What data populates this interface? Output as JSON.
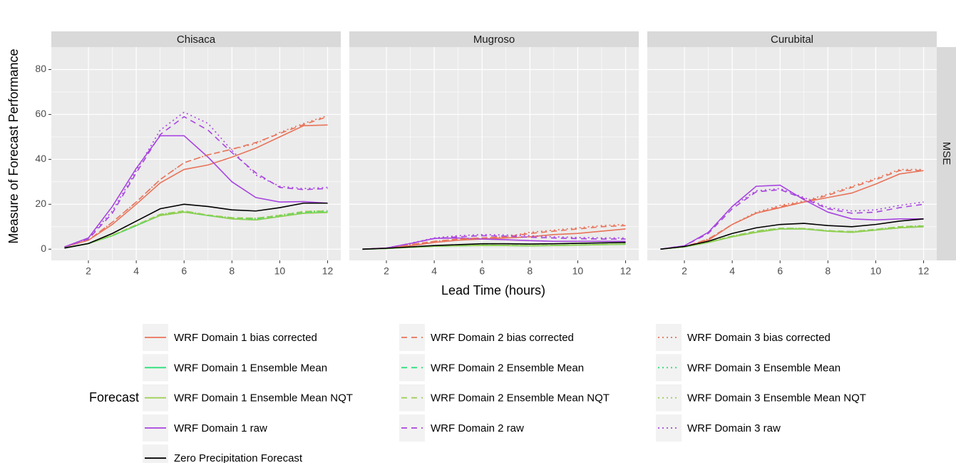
{
  "xlabel": "Lead Time (hours)",
  "ylabel": "Measure of Forecast Performance",
  "legend_title": "Forecast",
  "row_label": "MSE",
  "chart_data": [
    {
      "type": "line",
      "title": "Chisaca",
      "x": [
        1,
        2,
        3,
        4,
        5,
        6,
        7,
        8,
        9,
        10,
        11,
        12
      ],
      "xlim": [
        0.45,
        12.55
      ],
      "ylim": [
        -5,
        90
      ],
      "xticks": [
        2,
        4,
        6,
        8,
        10,
        12
      ],
      "yticks": [
        0,
        20,
        40,
        60,
        80
      ],
      "grid": true,
      "series": [
        {
          "name": "WRF Domain 1 bias corrected",
          "color": "#E8735A",
          "linetype": "solid",
          "values": [
            1,
            4,
            11,
            20,
            29.5,
            35.5,
            37.5,
            41,
            45,
            50,
            55,
            55.3
          ]
        },
        {
          "name": "WRF Domain 1 Ensemble Mean",
          "color": "#2BE07A",
          "linetype": "solid",
          "values": [
            0.5,
            2.5,
            6,
            10.5,
            15,
            16.5,
            15,
            13.5,
            13,
            14.5,
            16,
            16.5
          ]
        },
        {
          "name": "WRF Domain 1 Ensemble Mean NQT",
          "color": "#9ACD4F",
          "linetype": "solid",
          "values": [
            0.5,
            2.5,
            6,
            10.5,
            15,
            16.5,
            15,
            13.5,
            13,
            14.5,
            16,
            16.3
          ]
        },
        {
          "name": "WRF Domain 1 raw",
          "color": "#A845E0",
          "linetype": "solid",
          "values": [
            1,
            5,
            19,
            36,
            50.5,
            50.5,
            41,
            30,
            23,
            21,
            21.2,
            20.5
          ]
        },
        {
          "name": "WRF Domain 2 bias corrected",
          "color": "#E8735A",
          "linetype": "dashed",
          "values": [
            1,
            4,
            12,
            21,
            31,
            38.5,
            42,
            44.5,
            47.5,
            51.5,
            55.5,
            59
          ]
        },
        {
          "name": "WRF Domain 2 Ensemble Mean",
          "color": "#2BE07A",
          "linetype": "dashed",
          "values": [
            0.5,
            2.5,
            6,
            10.5,
            15.5,
            17,
            15,
            14,
            13.5,
            15,
            16.5,
            17
          ]
        },
        {
          "name": "WRF Domain 2 Ensemble Mean NQT",
          "color": "#9ACD4F",
          "linetype": "dashed",
          "values": [
            0.5,
            2.5,
            6.2,
            10.8,
            15.5,
            17,
            15.2,
            14,
            13.8,
            15,
            16.8,
            17
          ]
        },
        {
          "name": "WRF Domain 2 raw",
          "color": "#A845E0",
          "linetype": "dashed",
          "values": [
            1,
            4.5,
            16,
            34,
            51,
            59,
            53,
            43,
            34,
            27.5,
            26.5,
            27
          ]
        },
        {
          "name": "WRF Domain 3 bias corrected",
          "color": "#E8735A",
          "linetype": "dotted",
          "values": [
            1,
            4,
            12,
            21,
            31,
            38.5,
            42,
            44.5,
            47,
            52,
            56,
            59.5
          ]
        },
        {
          "name": "WRF Domain 3 Ensemble Mean",
          "color": "#2BE07A",
          "linetype": "dotted",
          "values": [
            0.5,
            2.5,
            6,
            10.5,
            15.5,
            17,
            15,
            14,
            13.5,
            15,
            16.5,
            17
          ]
        },
        {
          "name": "WRF Domain 3 Ensemble Mean NQT",
          "color": "#9ACD4F",
          "linetype": "dotted",
          "values": [
            0.5,
            2.5,
            6.2,
            10.8,
            15.5,
            17,
            15.2,
            14,
            13.8,
            15.2,
            16.8,
            17.2
          ]
        },
        {
          "name": "WRF Domain 3 raw",
          "color": "#A845E0",
          "linetype": "dotted",
          "values": [
            1,
            5,
            17,
            35,
            53,
            61,
            56,
            44,
            33,
            28,
            27,
            27.5
          ]
        },
        {
          "name": "Zero Precipitation Forecast",
          "color": "#000000",
          "linetype": "solid",
          "values": [
            0.5,
            2.5,
            7,
            12.5,
            18,
            20,
            19,
            17.5,
            17,
            18.5,
            20.5,
            20.5
          ]
        }
      ]
    },
    {
      "type": "line",
      "title": "Mugroso",
      "x": [
        1,
        2,
        3,
        4,
        5,
        6,
        7,
        8,
        9,
        10,
        11,
        12
      ],
      "xlim": [
        0.45,
        12.55
      ],
      "ylim": [
        -5,
        90
      ],
      "xticks": [
        2,
        4,
        6,
        8,
        10,
        12
      ],
      "yticks": [
        0,
        20,
        40,
        60,
        80
      ],
      "grid": true,
      "series": [
        {
          "name": "WRF Domain 1 bias corrected",
          "color": "#E8735A",
          "linetype": "solid",
          "values": [
            0,
            0.5,
            1.5,
            3,
            4,
            4.5,
            5,
            5.5,
            6.5,
            7,
            8,
            9
          ]
        },
        {
          "name": "WRF Domain 1 Ensemble Mean",
          "color": "#2BE07A",
          "linetype": "solid",
          "values": [
            0,
            0.3,
            0.8,
            1.3,
            1.5,
            1.7,
            1.6,
            1.5,
            1.6,
            1.8,
            2,
            2.2
          ]
        },
        {
          "name": "WRF Domain 1 Ensemble Mean NQT",
          "color": "#9ACD4F",
          "linetype": "solid",
          "values": [
            0,
            0.3,
            0.8,
            1.3,
            1.5,
            1.7,
            1.6,
            1.5,
            1.6,
            1.8,
            2,
            2.2
          ]
        },
        {
          "name": "WRF Domain 1 raw",
          "color": "#A845E0",
          "linetype": "solid",
          "values": [
            0,
            0.5,
            2.5,
            4.8,
            5,
            4.5,
            4.2,
            3.8,
            3.5,
            3.5,
            3.5,
            3.5
          ]
        },
        {
          "name": "WRF Domain 2 bias corrected",
          "color": "#E8735A",
          "linetype": "dashed",
          "values": [
            0,
            0.5,
            2,
            3.5,
            4.5,
            5,
            5.5,
            7,
            8,
            9,
            10,
            10.5
          ]
        },
        {
          "name": "WRF Domain 2 Ensemble Mean",
          "color": "#2BE07A",
          "linetype": "dashed",
          "values": [
            0,
            0.3,
            0.9,
            1.4,
            1.6,
            1.8,
            1.7,
            1.6,
            1.7,
            1.9,
            2.1,
            2.3
          ]
        },
        {
          "name": "WRF Domain 2 Ensemble Mean NQT",
          "color": "#9ACD4F",
          "linetype": "dashed",
          "values": [
            0,
            0.3,
            0.9,
            1.4,
            1.6,
            1.8,
            1.7,
            1.6,
            1.7,
            1.9,
            2.1,
            2.3
          ]
        },
        {
          "name": "WRF Domain 2 raw",
          "color": "#A845E0",
          "linetype": "dashed",
          "values": [
            0,
            0.5,
            2.5,
            4.7,
            5.5,
            6,
            5.8,
            5.3,
            5,
            4.7,
            4.5,
            4.5
          ]
        },
        {
          "name": "WRF Domain 3 bias corrected",
          "color": "#E8735A",
          "linetype": "dotted",
          "values": [
            0,
            0.5,
            2,
            3.5,
            4.5,
            5,
            5.5,
            7.5,
            8.5,
            9.5,
            10.5,
            11
          ]
        },
        {
          "name": "WRF Domain 3 Ensemble Mean",
          "color": "#2BE07A",
          "linetype": "dotted",
          "values": [
            0,
            0.3,
            0.9,
            1.4,
            1.6,
            1.8,
            1.7,
            1.6,
            1.7,
            1.9,
            2.1,
            2.3
          ]
        },
        {
          "name": "WRF Domain 3 Ensemble Mean NQT",
          "color": "#9ACD4F",
          "linetype": "dotted",
          "values": [
            0,
            0.3,
            0.9,
            1.4,
            1.6,
            1.8,
            1.7,
            1.6,
            1.7,
            1.9,
            2.1,
            2.3
          ]
        },
        {
          "name": "WRF Domain 3 raw",
          "color": "#A845E0",
          "linetype": "dotted",
          "values": [
            0,
            0.5,
            2.6,
            5,
            6,
            6.5,
            6.3,
            6,
            5.5,
            5.2,
            5,
            5
          ]
        },
        {
          "name": "Zero Precipitation Forecast",
          "color": "#000000",
          "linetype": "solid",
          "values": [
            0,
            0.4,
            1,
            1.6,
            2,
            2.4,
            2.4,
            2.3,
            2.4,
            2.6,
            2.8,
            3
          ]
        }
      ]
    },
    {
      "type": "line",
      "title": "Curubital",
      "x": [
        1,
        2,
        3,
        4,
        5,
        6,
        7,
        8,
        9,
        10,
        11,
        12
      ],
      "xlim": [
        0.45,
        12.55
      ],
      "ylim": [
        -5,
        90
      ],
      "xticks": [
        2,
        4,
        6,
        8,
        10,
        12
      ],
      "yticks": [
        0,
        20,
        40,
        60,
        80
      ],
      "grid": true,
      "series": [
        {
          "name": "WRF Domain 1 bias corrected",
          "color": "#E8735A",
          "linetype": "solid",
          "values": [
            0,
            1,
            4,
            11,
            16,
            18.5,
            21,
            23,
            25,
            29,
            33.5,
            35
          ]
        },
        {
          "name": "WRF Domain 1 Ensemble Mean",
          "color": "#2BE07A",
          "linetype": "solid",
          "values": [
            0,
            1,
            3,
            5.5,
            7.5,
            9,
            9,
            8,
            7.5,
            8.5,
            9.5,
            10
          ]
        },
        {
          "name": "WRF Domain 1 Ensemble Mean NQT",
          "color": "#9ACD4F",
          "linetype": "solid",
          "values": [
            0,
            1,
            3,
            5.5,
            7.5,
            9,
            9,
            8,
            7.5,
            8.5,
            9.5,
            10
          ]
        },
        {
          "name": "WRF Domain 1 raw",
          "color": "#A845E0",
          "linetype": "solid",
          "values": [
            0,
            1.5,
            7.5,
            19,
            28,
            28.5,
            22,
            16.5,
            13.5,
            13,
            13.5,
            13.5
          ]
        },
        {
          "name": "WRF Domain 2 bias corrected",
          "color": "#E8735A",
          "linetype": "dashed",
          "values": [
            0,
            1,
            4.5,
            11,
            16,
            19,
            21,
            24,
            27.5,
            31,
            35,
            35
          ]
        },
        {
          "name": "WRF Domain 2 Ensemble Mean",
          "color": "#2BE07A",
          "linetype": "dashed",
          "values": [
            0,
            1,
            3.2,
            5.8,
            8,
            9.3,
            9.2,
            8.2,
            7.8,
            8.8,
            10,
            10.3
          ]
        },
        {
          "name": "WRF Domain 2 Ensemble Mean NQT",
          "color": "#9ACD4F",
          "linetype": "dashed",
          "values": [
            0,
            1,
            3.2,
            5.8,
            8,
            9.3,
            9.2,
            8.2,
            7.8,
            8.8,
            10,
            10.3
          ]
        },
        {
          "name": "WRF Domain 2 raw",
          "color": "#A845E0",
          "linetype": "dashed",
          "values": [
            0,
            1.5,
            7,
            18,
            25.5,
            26.5,
            22.5,
            18,
            16,
            16.5,
            18.5,
            20
          ]
        },
        {
          "name": "WRF Domain 3 bias corrected",
          "color": "#E8735A",
          "linetype": "dotted",
          "values": [
            0,
            1,
            4.5,
            11,
            16.5,
            19.5,
            21.5,
            24.5,
            28,
            31.5,
            35.5,
            35.5
          ]
        },
        {
          "name": "WRF Domain 3 Ensemble Mean",
          "color": "#2BE07A",
          "linetype": "dotted",
          "values": [
            0,
            1,
            3.2,
            5.8,
            8,
            9.3,
            9.2,
            8.2,
            7.8,
            8.8,
            10,
            10.5
          ]
        },
        {
          "name": "WRF Domain 3 Ensemble Mean NQT",
          "color": "#9ACD4F",
          "linetype": "dotted",
          "values": [
            0,
            1,
            3.2,
            5.8,
            8,
            9.3,
            9.2,
            8.2,
            7.8,
            8.8,
            10,
            10.5
          ]
        },
        {
          "name": "WRF Domain 3 raw",
          "color": "#A845E0",
          "linetype": "dotted",
          "values": [
            0,
            1.5,
            7.5,
            19,
            26,
            27,
            23,
            18.5,
            17,
            17.5,
            19.5,
            21
          ]
        },
        {
          "name": "Zero Precipitation Forecast",
          "color": "#000000",
          "linetype": "solid",
          "values": [
            0,
            1.2,
            3.5,
            7,
            9.5,
            11,
            11.5,
            10.5,
            10,
            11,
            12.5,
            13.5
          ]
        }
      ]
    }
  ]
}
